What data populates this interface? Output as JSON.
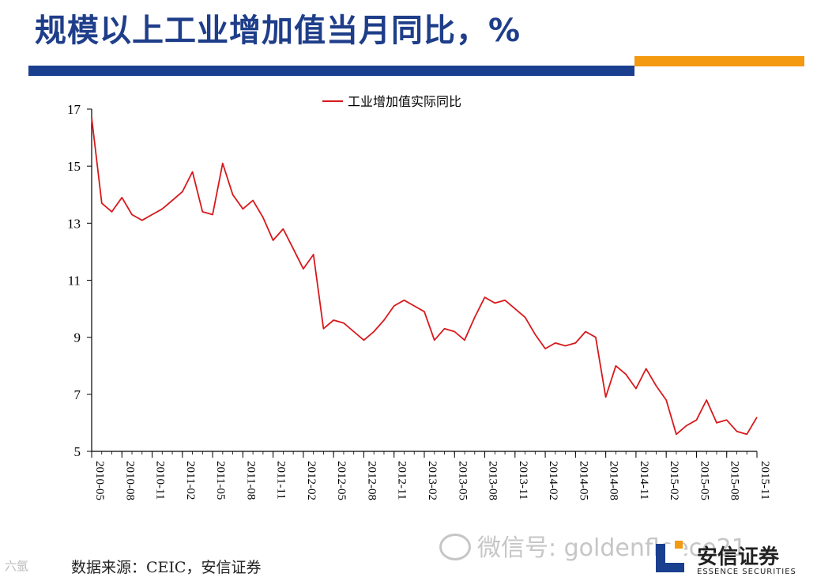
{
  "page": {
    "title": "规模以上工业增加值当月同比，%",
    "source": "数据来源：CEIC，安信证券",
    "watermark_left": "六氩",
    "watermark_wechat": "微信号: goldenfleece21",
    "logo_cn": "安信证券",
    "logo_en": "ESSENCE SECURITIES"
  },
  "colors": {
    "title": "#1f3e8a",
    "blue_bar": "#1a3f8f",
    "orange_bar": "#f39a10",
    "line": "#d7191c"
  },
  "chart_data": {
    "type": "line",
    "title": "",
    "xlabel": "",
    "ylabel": "",
    "ylim": [
      5,
      17
    ],
    "yticks": [
      5,
      7,
      9,
      11,
      13,
      15,
      17
    ],
    "xtick_labels": [
      "2010-05",
      "2010-08",
      "2010-11",
      "2011-02",
      "2011-05",
      "2011-08",
      "2011-11",
      "2012-02",
      "2012-05",
      "2012-08",
      "2012-11",
      "2013-02",
      "2013-05",
      "2013-08",
      "2013-11",
      "2014-02",
      "2014-05",
      "2014-08",
      "2014-11",
      "2015-02",
      "2015-05",
      "2015-08",
      "2015-11"
    ],
    "legend": "top-center",
    "series": [
      {
        "name": "工业增加值实际同比",
        "x": [
          "2010-05",
          "2010-06",
          "2010-07",
          "2010-08",
          "2010-09",
          "2010-10",
          "2010-11",
          "2010-12",
          "2011-01",
          "2011-02",
          "2011-03",
          "2011-04",
          "2011-05",
          "2011-06",
          "2011-07",
          "2011-08",
          "2011-09",
          "2011-10",
          "2011-11",
          "2011-12",
          "2012-01",
          "2012-02",
          "2012-03",
          "2012-04",
          "2012-05",
          "2012-06",
          "2012-07",
          "2012-08",
          "2012-09",
          "2012-10",
          "2012-11",
          "2012-12",
          "2013-01",
          "2013-02",
          "2013-03",
          "2013-04",
          "2013-05",
          "2013-06",
          "2013-07",
          "2013-08",
          "2013-09",
          "2013-10",
          "2013-11",
          "2013-12",
          "2014-01",
          "2014-02",
          "2014-03",
          "2014-04",
          "2014-05",
          "2014-06",
          "2014-07",
          "2014-08",
          "2014-09",
          "2014-10",
          "2014-11",
          "2014-12",
          "2015-01",
          "2015-02",
          "2015-03",
          "2015-04",
          "2015-05",
          "2015-06",
          "2015-07",
          "2015-08",
          "2015-09",
          "2015-10",
          "2015-11"
        ],
        "values": [
          16.7,
          13.7,
          13.4,
          13.9,
          13.3,
          13.1,
          13.3,
          13.5,
          13.8,
          14.1,
          14.8,
          13.4,
          13.3,
          15.1,
          14.0,
          13.5,
          13.8,
          13.2,
          12.4,
          12.8,
          12.1,
          11.4,
          11.9,
          9.3,
          9.6,
          9.5,
          9.2,
          8.9,
          9.2,
          9.6,
          10.1,
          10.3,
          10.1,
          9.9,
          8.9,
          9.3,
          9.2,
          8.9,
          9.7,
          10.4,
          10.2,
          10.3,
          10.0,
          9.7,
          9.1,
          8.6,
          8.8,
          8.7,
          8.8,
          9.2,
          9.0,
          6.9,
          8.0,
          7.7,
          7.2,
          7.9,
          7.3,
          6.8,
          5.6,
          5.9,
          6.1,
          6.8,
          6.0,
          6.1,
          5.7,
          5.6,
          6.2
        ]
      }
    ]
  }
}
